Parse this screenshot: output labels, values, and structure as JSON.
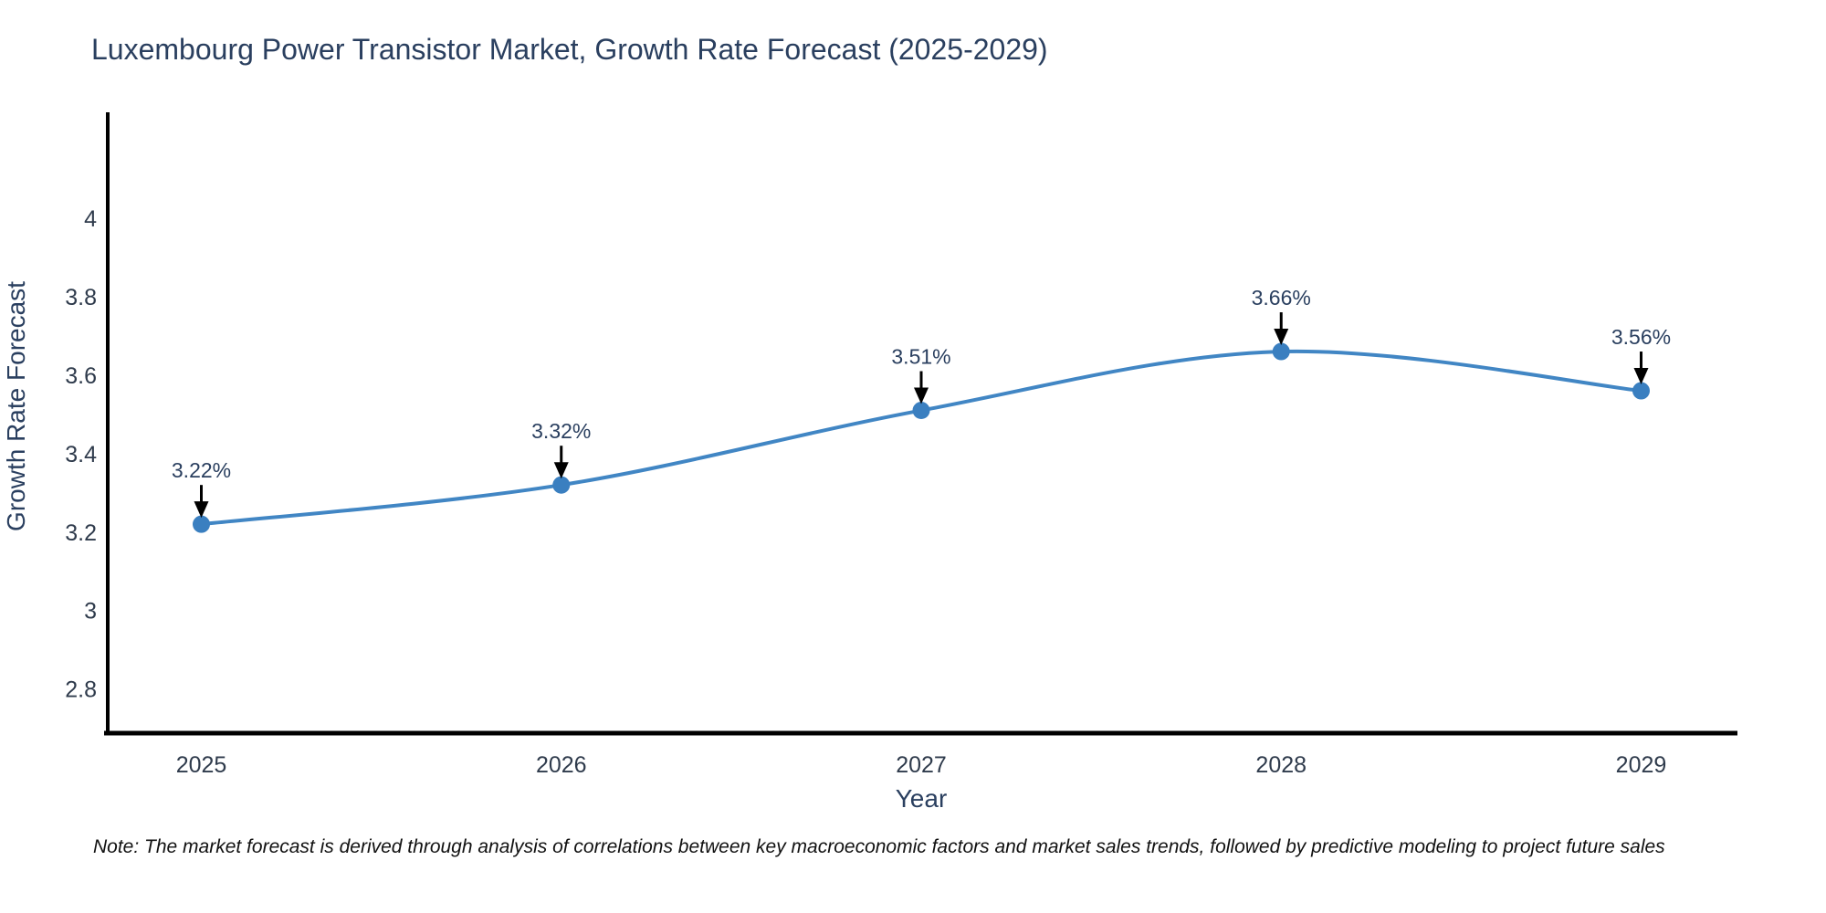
{
  "chart": {
    "title": "Luxembourg Power Transistor Market, Growth Rate Forecast (2025-2029)",
    "note": "Note: The market forecast is derived through analysis of correlations between key macroeconomic factors and market sales trends, followed by predictive modeling to project future sales"
  },
  "chart_data": {
    "type": "line",
    "title": "Luxembourg Power Transistor Market, Growth Rate Forecast (2025-2029)",
    "xlabel": "Year",
    "ylabel": "Growth Rate Forecast",
    "x": [
      2025,
      2026,
      2027,
      2028,
      2029
    ],
    "values": [
      3.22,
      3.32,
      3.51,
      3.66,
      3.56
    ],
    "point_labels": [
      "3.22%",
      "3.32%",
      "3.51%",
      "3.66%",
      "3.56%"
    ],
    "xtick_labels": [
      "2025",
      "2026",
      "2027",
      "2028",
      "2029"
    ],
    "yticks": [
      2.8,
      3.0,
      3.2,
      3.4,
      3.6,
      3.8,
      4.0
    ],
    "ytick_labels": [
      "2.8",
      "3",
      "3.2",
      "3.4",
      "3.6",
      "3.8",
      "4"
    ],
    "xlim": [
      2024.74,
      2029.26
    ],
    "ylim": [
      2.69,
      4.265
    ],
    "grid": false,
    "legend_position": "none",
    "line_shape": "spline",
    "colors": {
      "line": "#4186c4",
      "marker": "#3a7fc0",
      "axis": "#000000",
      "tick_text": "#2f3b4c",
      "title_text": "#2a3f5f",
      "annotation_text": "#2a3f5f",
      "annotation_arrow": "#000000"
    }
  }
}
